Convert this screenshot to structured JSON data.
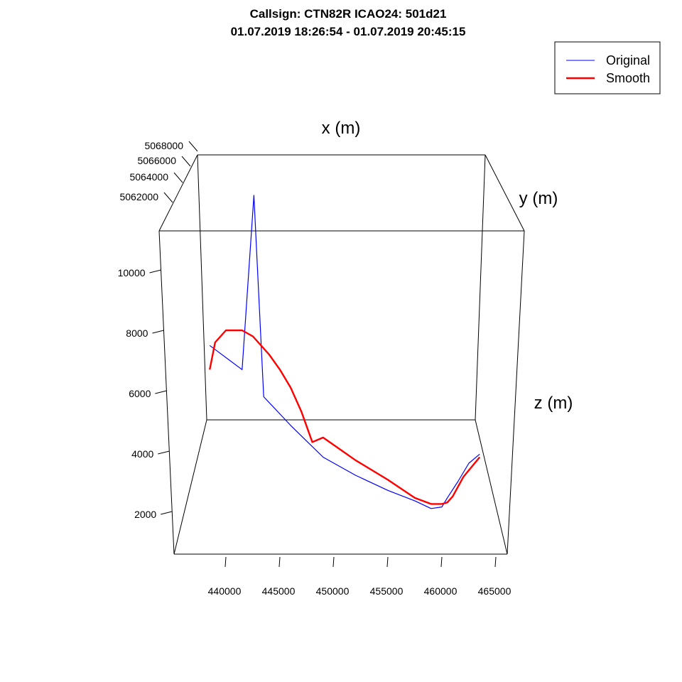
{
  "title_line1": "Callsign: CTN82R    ICAO24: 501d21",
  "title_line2": "01.07.2019 18:26:54 - 01.07.2019 20:45:15",
  "legend": [
    {
      "label": "Original",
      "color": "#0000ff"
    },
    {
      "label": "Smooth",
      "color": "#ff0000"
    }
  ],
  "chart_data": {
    "type": "line",
    "subtype": "3d-scatter-line",
    "xlabel": "x (m)",
    "ylabel": "y (m)",
    "zlabel": "z (m)",
    "x_ticks": [
      "440000",
      "445000",
      "450000",
      "455000",
      "460000",
      "465000"
    ],
    "y_ticks": [
      "5062000",
      "5064000",
      "5066000",
      "5068000"
    ],
    "z_ticks": [
      "2000",
      "4000",
      "6000",
      "8000",
      "10000"
    ],
    "xlim": [
      435000,
      466000
    ],
    "zlim": [
      0,
      11500
    ],
    "legend_position": "top-right",
    "grid": false,
    "series": [
      {
        "name": "Original",
        "color": "#0000ff",
        "x": [
          438500,
          441500,
          442000,
          443500,
          446000,
          449000,
          452000,
          455000,
          457500,
          459000,
          460000,
          460500,
          461500,
          462500,
          463500
        ],
        "z": [
          7500,
          6700,
          11200,
          5800,
          4850,
          3800,
          3200,
          2700,
          2350,
          2100,
          2150,
          2450,
          3000,
          3600,
          3900
        ],
        "y_projected": [
          5063000,
          5063000,
          5066000,
          5063000,
          5063000,
          5063000,
          5063000,
          5063000,
          5063000,
          5063000,
          5063000,
          5063000,
          5063000,
          5063000,
          5063000
        ]
      },
      {
        "name": "Smooth",
        "color": "#ff0000",
        "x": [
          438500,
          439000,
          440000,
          441500,
          442500,
          444000,
          445000,
          446000,
          447000,
          448000,
          449000,
          450000,
          452000,
          455000,
          457500,
          459000,
          460000,
          460500,
          461000,
          462000,
          463500
        ],
        "z": [
          6700,
          7600,
          8000,
          8000,
          7800,
          7200,
          6700,
          6100,
          5300,
          4300,
          4450,
          4200,
          3700,
          3050,
          2450,
          2250,
          2250,
          2300,
          2500,
          3150,
          3800
        ],
        "y_projected": [
          5063000,
          5063000,
          5063000,
          5063000,
          5063000,
          5063000,
          5063000,
          5063000,
          5063000,
          5063000,
          5063000,
          5063000,
          5063000,
          5063000,
          5063000,
          5063000,
          5063000,
          5063000,
          5063000,
          5063000,
          5063000
        ]
      }
    ]
  }
}
